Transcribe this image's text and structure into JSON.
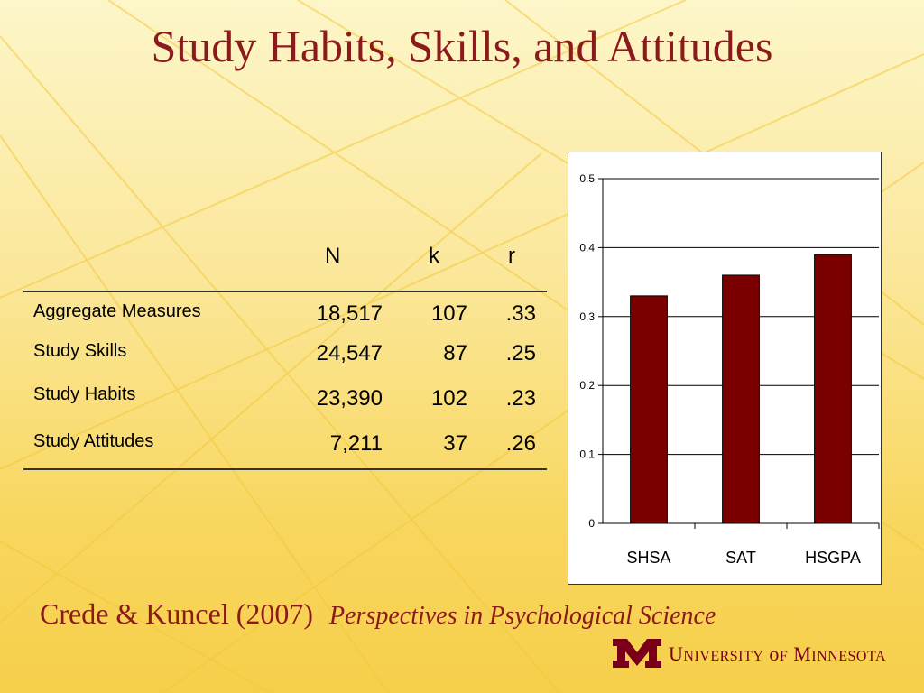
{
  "slide": {
    "title": "Study Habits, Skills, and Attitudes",
    "citation_authors": "Crede & Kuncel (2007)",
    "citation_journal": "Perspectives in Psychological Science",
    "university": "University of Minnesota",
    "colors": {
      "title": "#8b1a1a",
      "bar": "#7a0000",
      "logo": "#7a0019"
    }
  },
  "table": {
    "headers": [
      "N",
      "k",
      "r"
    ],
    "rows": [
      {
        "label": "Aggregate Measures",
        "N": "18,517",
        "k": "107",
        "r": ".33"
      },
      {
        "label": "Study Skills",
        "N": "24,547",
        "k": "87",
        "r": ".25"
      },
      {
        "label": "Study Habits",
        "N": "23,390",
        "k": "102",
        "r": ".23"
      },
      {
        "label": "Study Attitudes",
        "N": "7,211",
        "k": "37",
        "r": ".26"
      }
    ]
  },
  "chart_data": {
    "type": "bar",
    "categories": [
      "SHSA",
      "SAT",
      "HSGPA"
    ],
    "values": [
      0.33,
      0.36,
      0.39
    ],
    "ylim": [
      0,
      0.5
    ],
    "yticks": [
      "0",
      "0.1",
      "0.2",
      "0.3",
      "0.4",
      "0.5"
    ],
    "grid": true,
    "title": "",
    "xlabel": "",
    "ylabel": ""
  }
}
